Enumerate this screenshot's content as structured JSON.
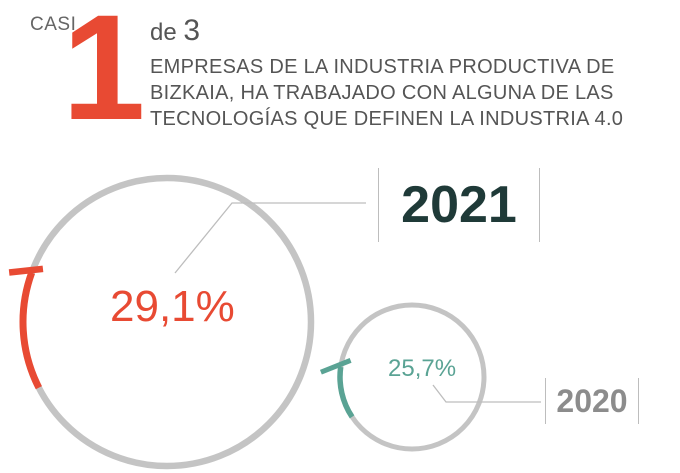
{
  "header": {
    "prefix": "CASI",
    "big_number": "1",
    "of_text": "de",
    "of_number": "3",
    "headline": "EMPRESAS DE LA INDUSTRIA PRODUCTIVA DE BIZKAIA, HA TRABAJADO CON ALGUNA DE LAS TECNOLOGÍAS QUE DEFINEN LA INDUSTRIA 4.0"
  },
  "chart_data": {
    "type": "pie",
    "series": [
      {
        "name": "2021",
        "value": 29.1,
        "label": "29,1%",
        "color": "#e84a33"
      },
      {
        "name": "2020",
        "value": 25.7,
        "label": "25,7%",
        "color": "#5aa394"
      }
    ],
    "ring_color": "#c4c4c4",
    "unit": "%"
  }
}
